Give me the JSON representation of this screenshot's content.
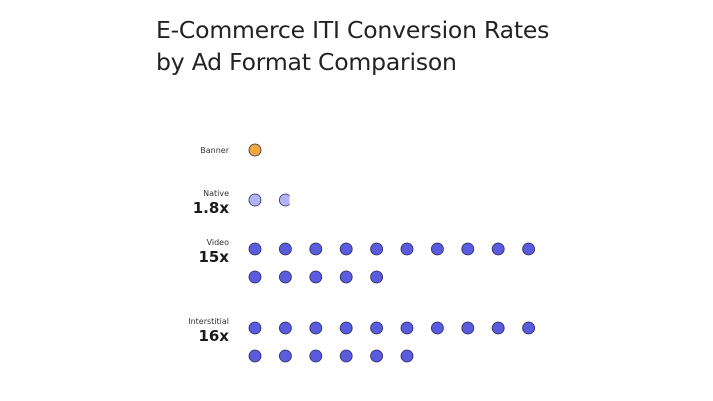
{
  "title_lines": [
    "E-Commerce ITI Conversion Rates",
    "by Ad Format Comparison"
  ],
  "colors": {
    "baseline": "#F2A93B",
    "native": "#B3B3F5",
    "dot": "#5B5BE0",
    "outline": "#2a2a55"
  },
  "chart_data": {
    "type": "unit-dot",
    "title": "E-Commerce ITI Conversion Rates by Ad Format Comparison",
    "categories": [
      "Banner",
      "Native",
      "Video",
      "Interstitial"
    ],
    "values": [
      1,
      1.8,
      15,
      16
    ],
    "value_labels": [
      "",
      "1.8x",
      "15x",
      "16x"
    ],
    "baseline": "Banner",
    "dots_per_row": 10
  }
}
